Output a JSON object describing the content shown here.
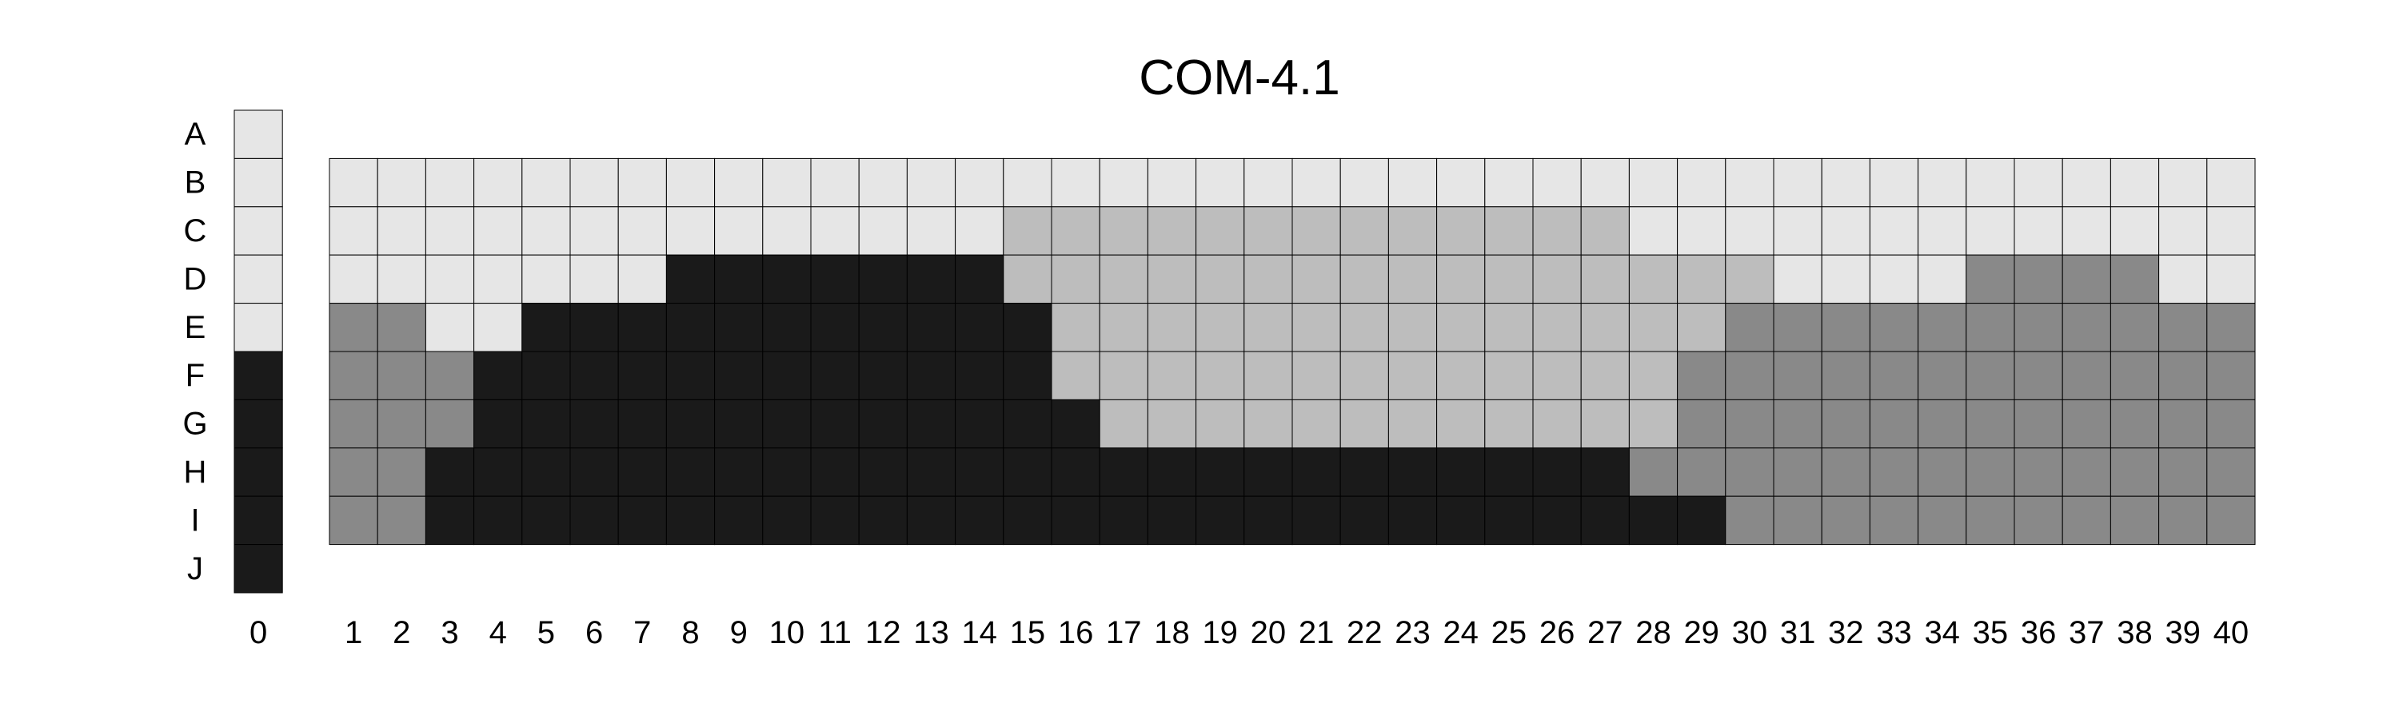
{
  "chart_data": {
    "type": "heatmap",
    "title": "COM-4.1",
    "rows": [
      "A",
      "B",
      "C",
      "D",
      "E",
      "F",
      "G",
      "H",
      "I",
      "J"
    ],
    "reference_column": {
      "label": "0",
      "levels": [
        0,
        0,
        0,
        0,
        0,
        3,
        3,
        3,
        3,
        3
      ]
    },
    "columns": [
      "1",
      "2",
      "3",
      "4",
      "5",
      "6",
      "7",
      "8",
      "9",
      "10",
      "11",
      "12",
      "13",
      "14",
      "15",
      "16",
      "17",
      "18",
      "19",
      "20",
      "21",
      "22",
      "23",
      "24",
      "25",
      "26",
      "27",
      "28",
      "29",
      "30",
      "31",
      "32",
      "33",
      "34",
      "35",
      "36",
      "37",
      "38",
      "39",
      "40"
    ],
    "grid_rows": [
      "B",
      "C",
      "D",
      "E",
      "F",
      "G",
      "H",
      "I"
    ],
    "grid_levels": [
      [
        0,
        0,
        0,
        0,
        0,
        0,
        0,
        0,
        0,
        0,
        0,
        0,
        0,
        0,
        0,
        0,
        0,
        0,
        0,
        0,
        0,
        0,
        0,
        0,
        0,
        0,
        0,
        0,
        0,
        0,
        0,
        0,
        0,
        0,
        0,
        0,
        0,
        0,
        0,
        0
      ],
      [
        0,
        0,
        0,
        0,
        0,
        0,
        0,
        0,
        0,
        0,
        0,
        0,
        0,
        0,
        1,
        1,
        1,
        1,
        1,
        1,
        1,
        1,
        1,
        1,
        1,
        1,
        1,
        0,
        0,
        0,
        0,
        0,
        0,
        0,
        0,
        0,
        0,
        0,
        0,
        0
      ],
      [
        0,
        0,
        0,
        0,
        0,
        0,
        0,
        3,
        3,
        3,
        3,
        3,
        3,
        3,
        1,
        1,
        1,
        1,
        1,
        1,
        1,
        1,
        1,
        1,
        1,
        1,
        1,
        1,
        1,
        1,
        0,
        0,
        0,
        0,
        2,
        2,
        2,
        2,
        0,
        0
      ],
      [
        2,
        2,
        0,
        0,
        3,
        3,
        3,
        3,
        3,
        3,
        3,
        3,
        3,
        3,
        3,
        1,
        1,
        1,
        1,
        1,
        1,
        1,
        1,
        1,
        1,
        1,
        1,
        1,
        1,
        2,
        2,
        2,
        2,
        2,
        2,
        2,
        2,
        2,
        2,
        2
      ],
      [
        2,
        2,
        2,
        3,
        3,
        3,
        3,
        3,
        3,
        3,
        3,
        3,
        3,
        3,
        3,
        1,
        1,
        1,
        1,
        1,
        1,
        1,
        1,
        1,
        1,
        1,
        1,
        1,
        2,
        2,
        2,
        2,
        2,
        2,
        2,
        2,
        2,
        2,
        2,
        2
      ],
      [
        2,
        2,
        2,
        3,
        3,
        3,
        3,
        3,
        3,
        3,
        3,
        3,
        3,
        3,
        3,
        3,
        1,
        1,
        1,
        1,
        1,
        1,
        1,
        1,
        1,
        1,
        1,
        1,
        2,
        2,
        2,
        2,
        2,
        2,
        2,
        2,
        2,
        2,
        2,
        2
      ],
      [
        2,
        2,
        3,
        3,
        3,
        3,
        3,
        3,
        3,
        3,
        3,
        3,
        3,
        3,
        3,
        3,
        3,
        3,
        3,
        3,
        3,
        3,
        3,
        3,
        3,
        3,
        3,
        2,
        2,
        2,
        2,
        2,
        2,
        2,
        2,
        2,
        2,
        2,
        2,
        2
      ],
      [
        2,
        2,
        3,
        3,
        3,
        3,
        3,
        3,
        3,
        3,
        3,
        3,
        3,
        3,
        3,
        3,
        3,
        3,
        3,
        3,
        3,
        3,
        3,
        3,
        3,
        3,
        3,
        3,
        3,
        2,
        2,
        2,
        2,
        2,
        2,
        2,
        2,
        2,
        2,
        2
      ]
    ],
    "level_colors": [
      "#e6e6e6",
      "#bdbdbd",
      "#898989",
      "#1a1a1a"
    ],
    "grid": true,
    "legend": "none"
  }
}
